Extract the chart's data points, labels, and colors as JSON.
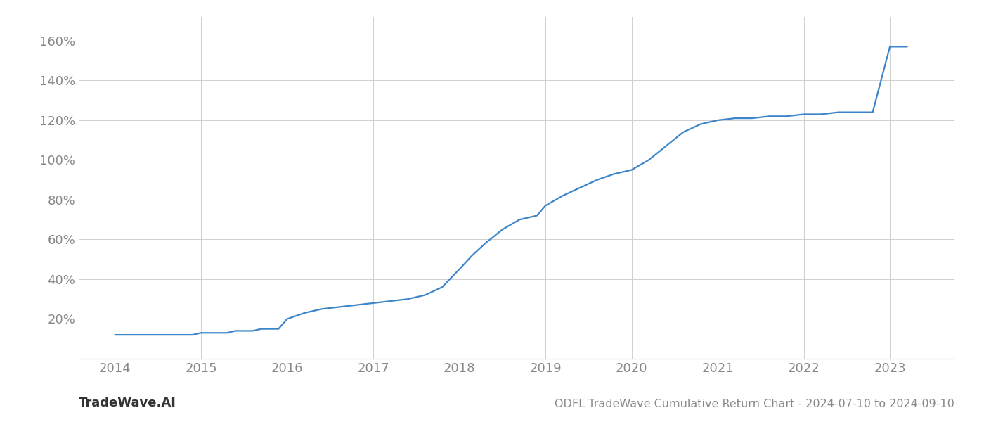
{
  "title": "ODFL TradeWave Cumulative Return Chart - 2024-07-10 to 2024-09-10",
  "watermark": "TradeWave.AI",
  "line_color": "#3d85c8",
  "line_width": 1.6,
  "background_color": "#ffffff",
  "grid_color": "#d0d0d0",
  "x_years": [
    2014.0,
    2014.1,
    2014.2,
    2014.3,
    2014.4,
    2014.5,
    2014.6,
    2014.7,
    2014.8,
    2014.9,
    2015.0,
    2015.1,
    2015.2,
    2015.3,
    2015.4,
    2015.5,
    2015.6,
    2015.7,
    2015.8,
    2015.9,
    2016.0,
    2016.2,
    2016.4,
    2016.6,
    2016.8,
    2017.0,
    2017.2,
    2017.4,
    2017.6,
    2017.8,
    2018.0,
    2018.15,
    2018.3,
    2018.5,
    2018.7,
    2018.9,
    2019.0,
    2019.2,
    2019.4,
    2019.6,
    2019.8,
    2020.0,
    2020.2,
    2020.4,
    2020.6,
    2020.8,
    2021.0,
    2021.2,
    2021.4,
    2021.6,
    2021.8,
    2022.0,
    2022.2,
    2022.4,
    2022.6,
    2022.8,
    2023.0,
    2023.2
  ],
  "y_values": [
    12,
    12,
    12,
    12,
    12,
    12,
    12,
    12,
    12,
    12,
    13,
    13,
    13,
    13,
    14,
    14,
    14,
    15,
    15,
    15,
    20,
    23,
    25,
    26,
    27,
    28,
    29,
    30,
    32,
    36,
    45,
    52,
    58,
    65,
    70,
    72,
    77,
    82,
    86,
    90,
    93,
    95,
    100,
    107,
    114,
    118,
    120,
    121,
    121,
    122,
    122,
    123,
    123,
    124,
    124,
    124,
    157,
    157
  ],
  "ylim": [
    0,
    172
  ],
  "yticks": [
    20,
    40,
    60,
    80,
    100,
    120,
    140,
    160
  ],
  "xlim": [
    2013.58,
    2023.75
  ],
  "xticks": [
    2014,
    2015,
    2016,
    2017,
    2018,
    2019,
    2020,
    2021,
    2022,
    2023
  ],
  "tick_fontsize": 13,
  "footer_fontsize": 11.5,
  "watermark_fontsize": 13
}
